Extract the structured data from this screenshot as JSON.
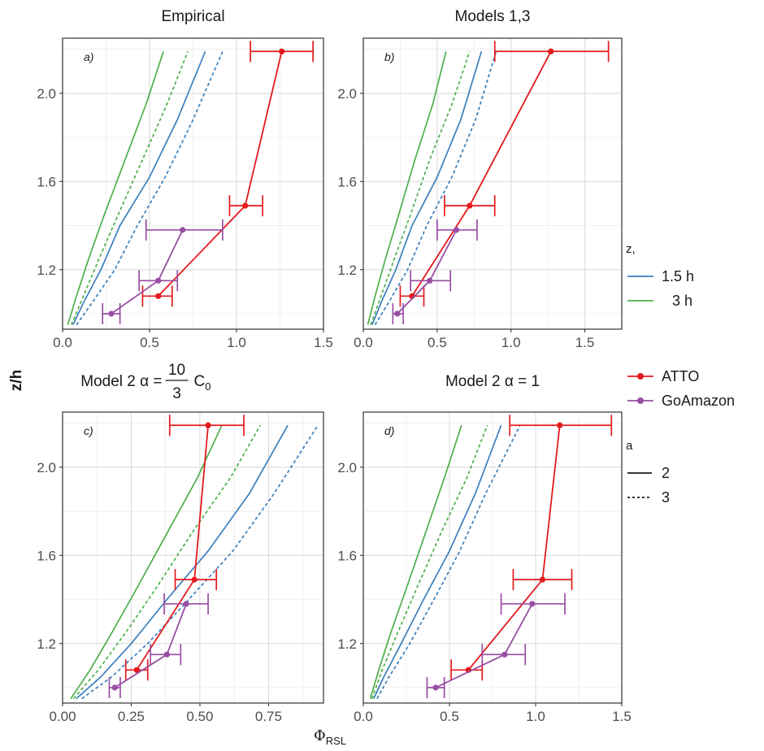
{
  "figure": {
    "x_label": "Φ",
    "x_label_sub": "RSL",
    "y_label": "z/h"
  },
  "legend_z": {
    "title": "z,",
    "items": [
      {
        "label": "1.5 h",
        "color": "#3a7fbd"
      },
      {
        "label": "3 h",
        "color": "#4daf4a"
      }
    ]
  },
  "legend_site": {
    "items": [
      {
        "label": "ATTO",
        "color": "#e41a1c"
      },
      {
        "label": "GoAmazon",
        "color": "#984ea3"
      }
    ]
  },
  "legend_a": {
    "title": "a",
    "items": [
      {
        "label": "2",
        "linetype": "solid"
      },
      {
        "label": "3",
        "linetype": "dashed"
      }
    ]
  },
  "chart_data": [
    {
      "type": "line",
      "panel": "a",
      "tag": "a)",
      "title": "Empirical",
      "xlim": [
        0,
        1.5
      ],
      "ylim": [
        0.93,
        2.25
      ],
      "x_ticks": [
        0,
        0.5,
        1.0,
        1.5
      ],
      "x_tick_labels": [
        "0.0",
        "0.5",
        "1.0",
        "1.5"
      ],
      "y_ticks": [
        1.2,
        1.6,
        2.0
      ],
      "y_tick_labels": [
        "1.2",
        "1.6",
        "2.0"
      ],
      "grid": true,
      "curves": [
        {
          "z": "1.5 h",
          "a": "2",
          "color": "#3a7fbd",
          "dash": "solid",
          "points": [
            [
              0.06,
              0.95
            ],
            [
              0.12,
              1.05
            ],
            [
              0.22,
              1.2
            ],
            [
              0.33,
              1.4
            ],
            [
              0.5,
              1.62
            ],
            [
              0.66,
              1.88
            ],
            [
              0.82,
              2.19
            ]
          ]
        },
        {
          "z": "1.5 h",
          "a": "3",
          "color": "#3a7fbd",
          "dash": "dashed",
          "points": [
            [
              0.08,
              0.95
            ],
            [
              0.17,
              1.05
            ],
            [
              0.3,
              1.2
            ],
            [
              0.43,
              1.4
            ],
            [
              0.59,
              1.62
            ],
            [
              0.75,
              1.88
            ],
            [
              0.92,
              2.19
            ]
          ]
        },
        {
          "z": "3 h",
          "a": "2",
          "color": "#4daf4a",
          "dash": "solid",
          "points": [
            [
              0.03,
              0.95
            ],
            [
              0.08,
              1.08
            ],
            [
              0.15,
              1.25
            ],
            [
              0.24,
              1.45
            ],
            [
              0.36,
              1.7
            ],
            [
              0.48,
              1.95
            ],
            [
              0.58,
              2.19
            ]
          ]
        },
        {
          "z": "3 h",
          "a": "3",
          "color": "#4daf4a",
          "dash": "dashed",
          "points": [
            [
              0.05,
              0.95
            ],
            [
              0.12,
              1.08
            ],
            [
              0.21,
              1.25
            ],
            [
              0.32,
              1.45
            ],
            [
              0.46,
              1.7
            ],
            [
              0.6,
              1.95
            ],
            [
              0.72,
              2.19
            ]
          ]
        }
      ],
      "series": [
        {
          "name": "ATTO",
          "color": "#e41a1c",
          "points": [
            {
              "x": 0.55,
              "y": 1.08,
              "xmin": 0.46,
              "xmax": 0.63
            },
            {
              "x": 1.05,
              "y": 1.49,
              "xmin": 0.96,
              "xmax": 1.15
            },
            {
              "x": 1.26,
              "y": 2.19,
              "xmin": 1.08,
              "xmax": 1.44
            }
          ]
        },
        {
          "name": "GoAmazon",
          "color": "#984ea3",
          "points": [
            {
              "x": 0.28,
              "y": 1.0,
              "xmin": 0.23,
              "xmax": 0.33
            },
            {
              "x": 0.55,
              "y": 1.15,
              "xmin": 0.44,
              "xmax": 0.66
            },
            {
              "x": 0.69,
              "y": 1.38,
              "xmin": 0.48,
              "xmax": 0.92
            }
          ]
        }
      ]
    },
    {
      "type": "line",
      "panel": "b",
      "tag": "b)",
      "title": "Models 1,3",
      "xlim": [
        0,
        1.75
      ],
      "ylim": [
        0.93,
        2.25
      ],
      "x_ticks": [
        0,
        0.5,
        1.0,
        1.5
      ],
      "x_tick_labels": [
        "0.0",
        "0.5",
        "1.0",
        "1.5"
      ],
      "y_ticks": [
        1.2,
        1.6,
        2.0
      ],
      "y_tick_labels": [
        "1.2",
        "1.6",
        "2.0"
      ],
      "grid": true,
      "curves": [
        {
          "z": "1.5 h",
          "a": "2",
          "color": "#3a7fbd",
          "dash": "solid",
          "points": [
            [
              0.06,
              0.95
            ],
            [
              0.12,
              1.05
            ],
            [
              0.22,
              1.2
            ],
            [
              0.33,
              1.4
            ],
            [
              0.5,
              1.62
            ],
            [
              0.66,
              1.88
            ],
            [
              0.8,
              2.19
            ]
          ]
        },
        {
          "z": "1.5 h",
          "a": "3",
          "color": "#3a7fbd",
          "dash": "dashed",
          "points": [
            [
              0.08,
              0.95
            ],
            [
              0.17,
              1.05
            ],
            [
              0.3,
              1.2
            ],
            [
              0.43,
              1.4
            ],
            [
              0.6,
              1.62
            ],
            [
              0.76,
              1.88
            ],
            [
              0.9,
              2.19
            ]
          ]
        },
        {
          "z": "3 h",
          "a": "2",
          "color": "#4daf4a",
          "dash": "solid",
          "points": [
            [
              0.03,
              0.95
            ],
            [
              0.08,
              1.08
            ],
            [
              0.15,
              1.25
            ],
            [
              0.24,
              1.45
            ],
            [
              0.35,
              1.7
            ],
            [
              0.47,
              1.95
            ],
            [
              0.56,
              2.19
            ]
          ]
        },
        {
          "z": "3 h",
          "a": "3",
          "color": "#4daf4a",
          "dash": "dashed",
          "points": [
            [
              0.05,
              0.95
            ],
            [
              0.12,
              1.08
            ],
            [
              0.21,
              1.25
            ],
            [
              0.32,
              1.45
            ],
            [
              0.45,
              1.7
            ],
            [
              0.6,
              1.95
            ],
            [
              0.72,
              2.19
            ]
          ]
        }
      ],
      "series": [
        {
          "name": "ATTO",
          "color": "#e41a1c",
          "points": [
            {
              "x": 0.33,
              "y": 1.08,
              "xmin": 0.25,
              "xmax": 0.41
            },
            {
              "x": 0.72,
              "y": 1.49,
              "xmin": 0.55,
              "xmax": 0.89
            },
            {
              "x": 1.27,
              "y": 2.19,
              "xmin": 0.89,
              "xmax": 1.66
            }
          ]
        },
        {
          "name": "GoAmazon",
          "color": "#984ea3",
          "points": [
            {
              "x": 0.23,
              "y": 1.0,
              "xmin": 0.2,
              "xmax": 0.27
            },
            {
              "x": 0.45,
              "y": 1.15,
              "xmin": 0.32,
              "xmax": 0.59
            },
            {
              "x": 0.63,
              "y": 1.38,
              "xmin": 0.5,
              "xmax": 0.77
            }
          ]
        }
      ]
    },
    {
      "type": "line",
      "panel": "c",
      "tag": "c)",
      "title_prefix": "Model 2 ",
      "title_alpha": "α",
      "title_eq": "=",
      "title_frac_num": "10",
      "title_frac_den": "3",
      "title_c": "C",
      "title_c_sub": "0",
      "xlim": [
        0,
        0.95
      ],
      "ylim": [
        0.93,
        2.25
      ],
      "x_ticks": [
        0,
        0.25,
        0.5,
        0.75
      ],
      "x_tick_labels": [
        "0.00",
        "0.25",
        "0.50",
        "0.75"
      ],
      "y_ticks": [
        1.2,
        1.6,
        2.0
      ],
      "y_tick_labels": [
        "1.2",
        "1.6",
        "2.0"
      ],
      "grid": true,
      "curves": [
        {
          "z": "1.5 h",
          "a": "2",
          "color": "#3a7fbd",
          "dash": "solid",
          "points": [
            [
              0.05,
              0.95
            ],
            [
              0.14,
              1.05
            ],
            [
              0.25,
              1.2
            ],
            [
              0.38,
              1.4
            ],
            [
              0.53,
              1.62
            ],
            [
              0.68,
              1.88
            ],
            [
              0.82,
              2.19
            ]
          ]
        },
        {
          "z": "1.5 h",
          "a": "3",
          "color": "#3a7fbd",
          "dash": "dashed",
          "points": [
            [
              0.07,
              0.95
            ],
            [
              0.18,
              1.05
            ],
            [
              0.31,
              1.2
            ],
            [
              0.46,
              1.4
            ],
            [
              0.62,
              1.62
            ],
            [
              0.77,
              1.88
            ],
            [
              0.93,
              2.19
            ]
          ]
        },
        {
          "z": "3 h",
          "a": "2",
          "color": "#4daf4a",
          "dash": "solid",
          "points": [
            [
              0.03,
              0.95
            ],
            [
              0.1,
              1.08
            ],
            [
              0.18,
              1.25
            ],
            [
              0.27,
              1.45
            ],
            [
              0.38,
              1.7
            ],
            [
              0.49,
              1.95
            ],
            [
              0.58,
              2.19
            ]
          ]
        },
        {
          "z": "3 h",
          "a": "3",
          "color": "#4daf4a",
          "dash": "dashed",
          "points": [
            [
              0.04,
              0.95
            ],
            [
              0.13,
              1.08
            ],
            [
              0.23,
              1.25
            ],
            [
              0.34,
              1.45
            ],
            [
              0.47,
              1.7
            ],
            [
              0.61,
              1.95
            ],
            [
              0.72,
              2.19
            ]
          ]
        }
      ],
      "series": [
        {
          "name": "ATTO",
          "color": "#e41a1c",
          "points": [
            {
              "x": 0.27,
              "y": 1.08,
              "xmin": 0.23,
              "xmax": 0.31
            },
            {
              "x": 0.48,
              "y": 1.49,
              "xmin": 0.41,
              "xmax": 0.56
            },
            {
              "x": 0.53,
              "y": 2.19,
              "xmin": 0.39,
              "xmax": 0.66
            }
          ]
        },
        {
          "name": "GoAmazon",
          "color": "#984ea3",
          "points": [
            {
              "x": 0.19,
              "y": 1.0,
              "xmin": 0.17,
              "xmax": 0.21
            },
            {
              "x": 0.38,
              "y": 1.15,
              "xmin": 0.32,
              "xmax": 0.43
            },
            {
              "x": 0.45,
              "y": 1.38,
              "xmin": 0.37,
              "xmax": 0.53
            }
          ]
        }
      ]
    },
    {
      "type": "line",
      "panel": "d",
      "tag": "d)",
      "title_prefix": "Model 2 ",
      "title_alpha": "α",
      "title_eq": "=",
      "title_value": "1",
      "xlim": [
        0,
        1.5
      ],
      "ylim": [
        0.93,
        2.25
      ],
      "x_ticks": [
        0,
        0.5,
        1.0,
        1.5
      ],
      "x_tick_labels": [
        "0.0",
        "0.5",
        "1.0",
        "1.5"
      ],
      "y_ticks": [
        1.2,
        1.6,
        2.0
      ],
      "y_tick_labels": [
        "1.2",
        "1.6",
        "2.0"
      ],
      "grid": true,
      "curves": [
        {
          "z": "1.5 h",
          "a": "2",
          "color": "#3a7fbd",
          "dash": "solid",
          "points": [
            [
              0.06,
              0.95
            ],
            [
              0.12,
              1.05
            ],
            [
              0.22,
              1.2
            ],
            [
              0.35,
              1.4
            ],
            [
              0.5,
              1.62
            ],
            [
              0.65,
              1.88
            ],
            [
              0.8,
              2.19
            ]
          ]
        },
        {
          "z": "1.5 h",
          "a": "3",
          "color": "#3a7fbd",
          "dash": "dashed",
          "points": [
            [
              0.08,
              0.95
            ],
            [
              0.15,
              1.05
            ],
            [
              0.27,
              1.2
            ],
            [
              0.41,
              1.4
            ],
            [
              0.56,
              1.62
            ],
            [
              0.71,
              1.88
            ],
            [
              0.91,
              2.19
            ]
          ]
        },
        {
          "z": "3 h",
          "a": "2",
          "color": "#4daf4a",
          "dash": "solid",
          "points": [
            [
              0.04,
              0.95
            ],
            [
              0.09,
              1.08
            ],
            [
              0.16,
              1.25
            ],
            [
              0.25,
              1.45
            ],
            [
              0.36,
              1.7
            ],
            [
              0.47,
              1.95
            ],
            [
              0.57,
              2.19
            ]
          ]
        },
        {
          "z": "3 h",
          "a": "3",
          "color": "#4daf4a",
          "dash": "dashed",
          "points": [
            [
              0.05,
              0.95
            ],
            [
              0.11,
              1.08
            ],
            [
              0.2,
              1.25
            ],
            [
              0.31,
              1.45
            ],
            [
              0.45,
              1.7
            ],
            [
              0.6,
              1.95
            ],
            [
              0.72,
              2.19
            ]
          ]
        }
      ],
      "series": [
        {
          "name": "ATTO",
          "color": "#e41a1c",
          "points": [
            {
              "x": 0.61,
              "y": 1.08,
              "xmin": 0.51,
              "xmax": 0.69
            },
            {
              "x": 1.04,
              "y": 1.49,
              "xmin": 0.87,
              "xmax": 1.21
            },
            {
              "x": 1.14,
              "y": 2.19,
              "xmin": 0.85,
              "xmax": 1.44
            }
          ]
        },
        {
          "name": "GoAmazon",
          "color": "#984ea3",
          "points": [
            {
              "x": 0.42,
              "y": 1.0,
              "xmin": 0.37,
              "xmax": 0.47
            },
            {
              "x": 0.82,
              "y": 1.15,
              "xmin": 0.69,
              "xmax": 0.94
            },
            {
              "x": 0.98,
              "y": 1.38,
              "xmin": 0.8,
              "xmax": 1.17
            }
          ]
        }
      ]
    }
  ]
}
